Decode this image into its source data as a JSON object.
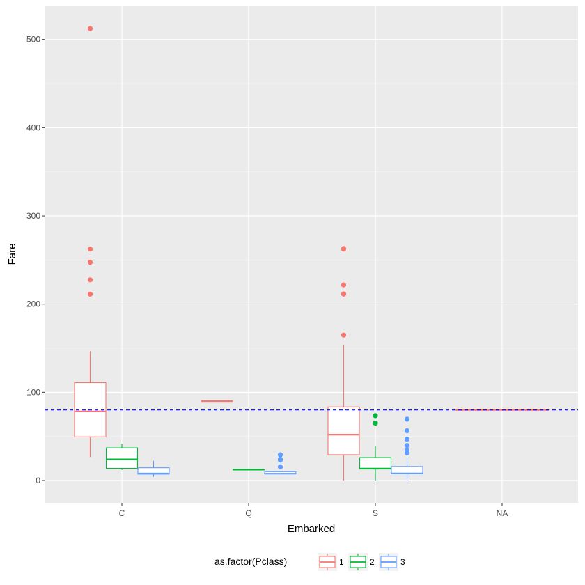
{
  "chart_data": {
    "type": "boxplot",
    "title": "",
    "xlabel": "Embarked",
    "ylabel": "Fare",
    "categories": [
      "C",
      "Q",
      "S",
      "NA"
    ],
    "ylim": [
      -25,
      540
    ],
    "yticks": [
      0,
      100,
      200,
      300,
      400,
      500
    ],
    "ytick_labels": [
      "0",
      "100",
      "200",
      "300",
      "400",
      "500"
    ],
    "hline": {
      "value": 80,
      "color": "#0000ff",
      "style": "dashed"
    },
    "legend": {
      "title": "as.factor(Pclass)",
      "position": "bottom"
    },
    "series": [
      {
        "name": "1",
        "color": "#f8766d",
        "boxes": [
          {
            "category": "C",
            "min": 26.55,
            "q1": 49.5,
            "median": 78.27,
            "q3": 110.88,
            "max": 146.52,
            "outliers": [
              211.34,
              227.53,
              247.52,
              262.38,
              512.33
            ]
          },
          {
            "category": "Q",
            "min": 90,
            "q1": 90,
            "median": 90,
            "q3": 90,
            "max": 90,
            "outliers": []
          },
          {
            "category": "S",
            "min": 0,
            "q1": 29.25,
            "median": 52,
            "q3": 83.48,
            "max": 153.46,
            "outliers": [
              164.87,
              211.34,
              211.5,
              221.78,
              262.38,
              263
            ]
          },
          {
            "category": "NA",
            "min": 80,
            "q1": 80,
            "median": 80,
            "q3": 80,
            "max": 80,
            "outliers": []
          }
        ]
      },
      {
        "name": "2",
        "color": "#00ba38",
        "boxes": [
          {
            "category": "C",
            "min": 12,
            "q1": 13.86,
            "median": 24,
            "q3": 37,
            "max": 41.58,
            "outliers": []
          },
          {
            "category": "Q",
            "min": 12.35,
            "q1": 12.35,
            "median": 12.35,
            "q3": 12.35,
            "max": 12.35,
            "outliers": []
          },
          {
            "category": "S",
            "min": 0,
            "q1": 13,
            "median": 13.5,
            "q3": 26,
            "max": 39,
            "outliers": [
              65,
              73.5
            ]
          }
        ]
      },
      {
        "name": "3",
        "color": "#619cff",
        "boxes": [
          {
            "category": "C",
            "min": 4.01,
            "q1": 7.23,
            "median": 7.9,
            "q3": 14.46,
            "max": 22.36,
            "outliers": []
          },
          {
            "category": "Q",
            "min": 6.75,
            "q1": 7.75,
            "median": 7.75,
            "q3": 10,
            "max": 10.5,
            "outliers": [
              15.5,
              23.25,
              24.15,
              29.12
            ]
          },
          {
            "category": "S",
            "min": 0,
            "q1": 7.85,
            "median": 8.05,
            "q3": 15.9,
            "max": 25.47,
            "outliers": [
              31.27,
              31.39,
              34.38,
              39.69,
              46.9,
              56.5,
              69.55
            ]
          }
        ]
      }
    ]
  }
}
